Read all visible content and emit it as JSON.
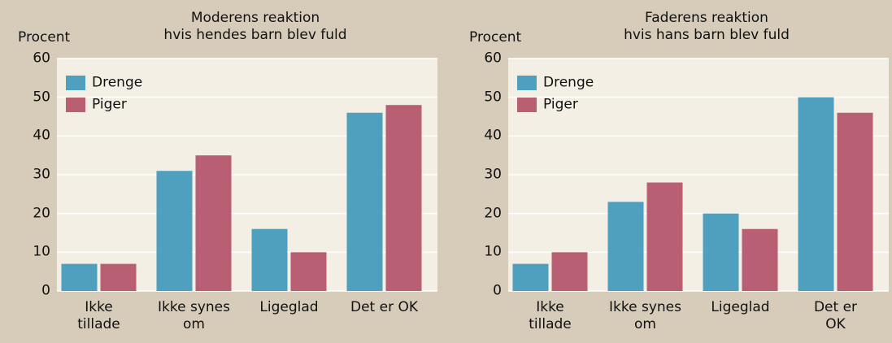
{
  "chart_data": [
    {
      "type": "bar",
      "title": "Moderens reaktion\nhvis hendes barn blev fuld",
      "ylabel": "Procent",
      "categories": [
        "Ikke\ntillade",
        "Ikke synes\nom",
        "Ligeglad",
        "Det er OK"
      ],
      "series": [
        {
          "name": "Drenge",
          "color": "#4f9fbf",
          "values": [
            7,
            31,
            16,
            46
          ]
        },
        {
          "name": "Piger",
          "color": "#b85f74",
          "values": [
            7,
            35,
            10,
            48
          ]
        }
      ],
      "ylim": [
        0,
        60
      ],
      "yticks": [
        0,
        10,
        20,
        30,
        40,
        50,
        60
      ],
      "grid": true,
      "legend": "upper left"
    },
    {
      "type": "bar",
      "title": "Faderens reaktion\nhvis hans barn blev fuld",
      "ylabel": "Procent",
      "categories": [
        "Ikke\ntillade",
        "Ikke synes\nom",
        "Ligeglad",
        "Det er OK"
      ],
      "series": [
        {
          "name": "Drenge",
          "color": "#4f9fbf",
          "values": [
            7,
            23,
            20,
            50
          ]
        },
        {
          "name": "Piger",
          "color": "#b85f74",
          "values": [
            10,
            28,
            16,
            46
          ]
        }
      ],
      "ylim": [
        0,
        60
      ],
      "yticks": [
        0,
        10,
        20,
        30,
        40,
        50,
        60
      ],
      "grid": true,
      "legend": "upper left"
    }
  ]
}
